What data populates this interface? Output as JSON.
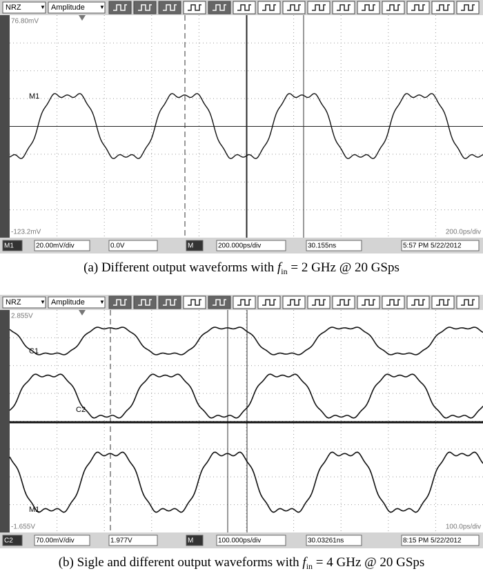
{
  "panels": [
    {
      "toolbar": {
        "encoding": "NRZ",
        "measurement": "Amplitude"
      },
      "screen": {
        "top_level": "76.80mV",
        "bottom_level": "-123.2mV",
        "timebase": "200.0ps/div",
        "trace_labels": [
          "M1"
        ]
      },
      "status_bar": {
        "source": "M1",
        "scale": "20.00mV/div",
        "offset": "0.0V",
        "math": "M",
        "horizontal_scale": "200.000ps/div",
        "position": "30.155ns",
        "timestamp": "5:57 PM 5/22/2012"
      },
      "caption": {
        "prefix": "(a) Different output waveforms with ",
        "variable": "f",
        "subscript": "in",
        "suffix": " = 2 GHz @ 20 GSps"
      }
    },
    {
      "toolbar": {
        "encoding": "NRZ",
        "measurement": "Amplitude"
      },
      "screen": {
        "top_level": "2.855V",
        "bottom_level": "-1.655V",
        "timebase": "100.0ps/div",
        "trace_labels": [
          "C1",
          "C2",
          "M1"
        ]
      },
      "status_bar": {
        "source": "C2",
        "scale": "70.00mV/div",
        "offset": "1.977V",
        "math": "M",
        "horizontal_scale": "100.000ps/div",
        "position": "30.03261ns",
        "timestamp": "8:15 PM 5/22/2012"
      },
      "caption": {
        "prefix": "(b) Sigle and different output waveforms with ",
        "variable": "f",
        "subscript": "in",
        "suffix": " = 4 GHz @ 20 GSps"
      }
    }
  ]
}
